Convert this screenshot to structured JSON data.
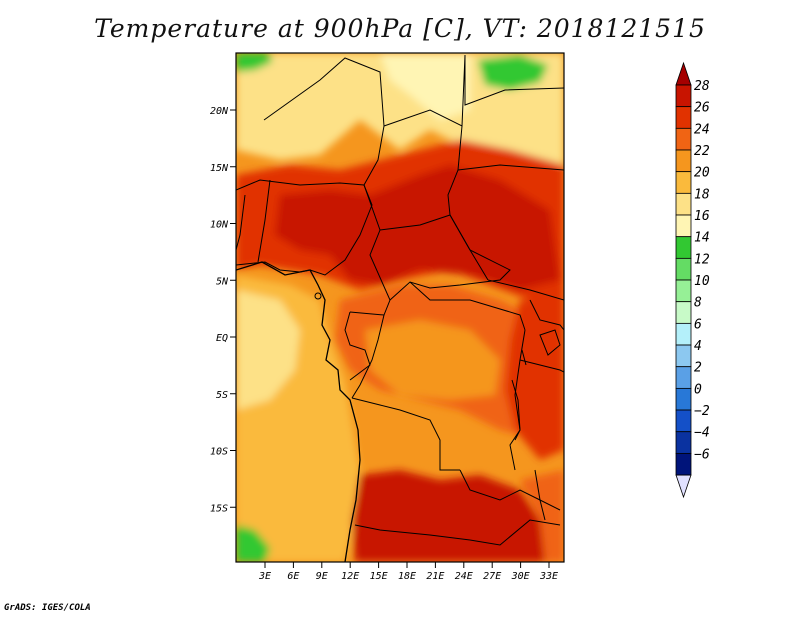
{
  "title": "Temperature at 900hPa [C], VT: 2018121515",
  "footer": "GrADS: IGES/COLA",
  "map": {
    "lat_labels": [
      "20N",
      "15N",
      "10N",
      "5N",
      "EQ",
      "5S",
      "10S",
      "15S"
    ],
    "lon_labels": [
      "3E",
      "6E",
      "9E",
      "12E",
      "15E",
      "18E",
      "21E",
      "24E",
      "27E",
      "30E",
      "33E"
    ]
  },
  "colorbar": {
    "labels": [
      "28",
      "26",
      "24",
      "22",
      "20",
      "18",
      "16",
      "14",
      "12",
      "10",
      "8",
      "6",
      "4",
      "2",
      "0",
      "−2",
      "−4",
      "−6"
    ],
    "colors": [
      "#a50000",
      "#c81400",
      "#e13200",
      "#f06414",
      "#f5961e",
      "#faba3c",
      "#fde187",
      "#fff5b4",
      "#32c832",
      "#64dc64",
      "#96f096",
      "#c8fac8",
      "#b4f0fa",
      "#8cc8f0",
      "#5aa0e6",
      "#2878d7",
      "#1450c8",
      "#0a32a0",
      "#00147a",
      "#e1e1ff"
    ]
  },
  "palette": {
    "ocean_warm": "#fab43c",
    "land_hot": "#dc2800",
    "land_warm": "#f06414",
    "cool_north": "#fde187",
    "green": "#32c832",
    "border": "#000000"
  }
}
